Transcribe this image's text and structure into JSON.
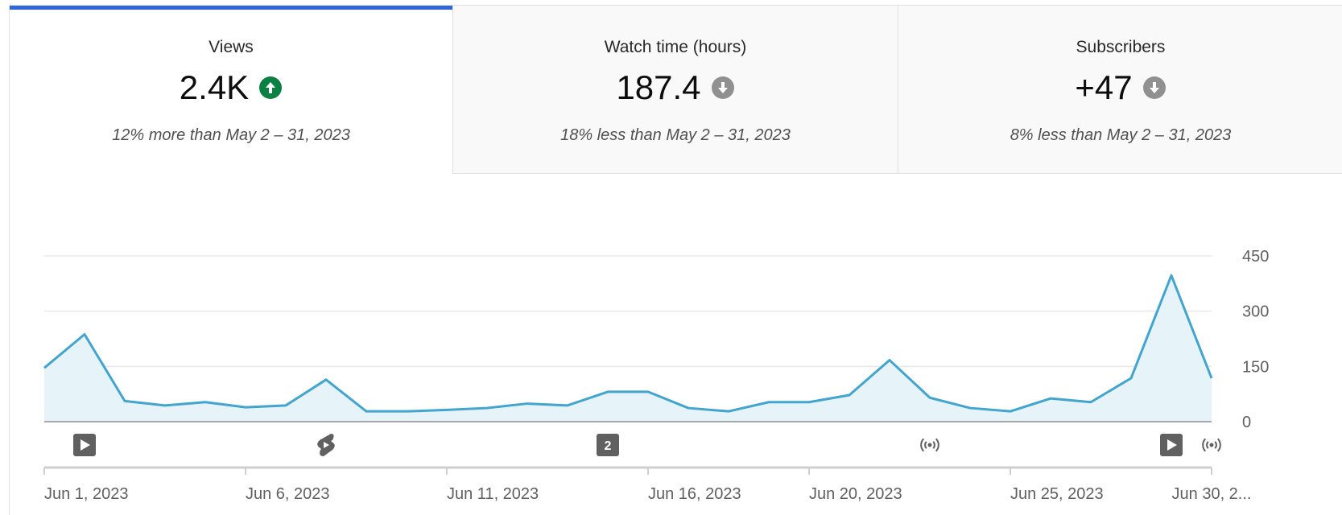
{
  "metrics": [
    {
      "title": "Views",
      "value": "2.4K",
      "trend": "up",
      "comparison": "12% more than May 2 – 31, 2023",
      "selected": true
    },
    {
      "title": "Watch time (hours)",
      "value": "187.4",
      "trend": "down",
      "comparison": "18% less than May 2 – 31, 2023",
      "selected": false
    },
    {
      "title": "Subscribers",
      "value": "+47",
      "trend": "down",
      "comparison": "8% less than May 2 – 31, 2023",
      "selected": false
    }
  ],
  "chart_data": {
    "type": "area",
    "x": [
      "2023-06-01",
      "2023-06-02",
      "2023-06-03",
      "2023-06-04",
      "2023-06-05",
      "2023-06-06",
      "2023-06-07",
      "2023-06-08",
      "2023-06-09",
      "2023-06-10",
      "2023-06-11",
      "2023-06-12",
      "2023-06-13",
      "2023-06-14",
      "2023-06-15",
      "2023-06-16",
      "2023-06-17",
      "2023-06-18",
      "2023-06-19",
      "2023-06-20",
      "2023-06-21",
      "2023-06-22",
      "2023-06-23",
      "2023-06-24",
      "2023-06-25",
      "2023-06-26",
      "2023-06-27",
      "2023-06-28",
      "2023-06-29",
      "2023-06-30"
    ],
    "values": [
      146,
      237,
      56,
      44,
      53,
      39,
      44,
      114,
      28,
      28,
      32,
      37,
      49,
      44,
      81,
      81,
      37,
      28,
      53,
      53,
      72,
      167,
      65,
      37,
      28,
      63,
      53,
      118,
      397,
      118
    ],
    "color": "#41a5cf",
    "fill": "#e6f3f9",
    "ylim": [
      0,
      450
    ],
    "yticks": [
      0,
      150,
      300,
      450
    ],
    "grid": true,
    "xticks": [
      {
        "value": "2023-06-01",
        "label": "Jun 1, 2023"
      },
      {
        "value": "2023-06-06",
        "label": "Jun 6, 2023"
      },
      {
        "value": "2023-06-11",
        "label": "Jun 11, 2023"
      },
      {
        "value": "2023-06-16",
        "label": "Jun 16, 2023"
      },
      {
        "value": "2023-06-20",
        "label": "Jun 20, 2023"
      },
      {
        "value": "2023-06-25",
        "label": "Jun 25, 2023"
      },
      {
        "value": "2023-06-30",
        "label": "Jun 30, 2..."
      }
    ],
    "events": [
      {
        "x": "2023-06-02",
        "icon": "video"
      },
      {
        "x": "2023-06-08",
        "icon": "short"
      },
      {
        "x": "2023-06-15",
        "icon": "count",
        "label": "2"
      },
      {
        "x": "2023-06-23",
        "icon": "live"
      },
      {
        "x": "2023-06-29",
        "icon": "video"
      },
      {
        "x": "2023-06-30",
        "icon": "live"
      }
    ]
  }
}
